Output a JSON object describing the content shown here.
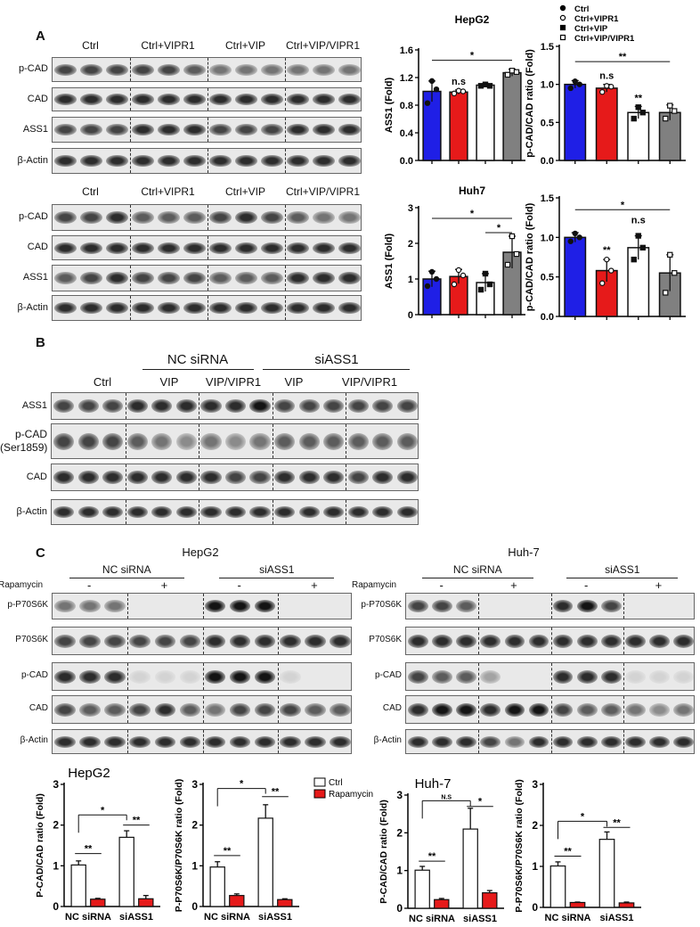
{
  "panel_a": {
    "label": "A",
    "groups": [
      "Ctrl",
      "Ctrl+VIPR1",
      "Ctrl+VIP",
      "Ctrl+VIP/VIPR1"
    ],
    "rows": [
      "p-CAD",
      "CAD",
      "ASS1",
      "β-Actin"
    ],
    "legend": [
      "Ctrl",
      "Ctrl+VIPR1",
      "Ctrl+VIP",
      "Ctrl+VIP/VIPR1"
    ]
  },
  "panel_b": {
    "label": "B",
    "group_labels": [
      "NC siRNA",
      "siASS1"
    ],
    "lanes": [
      "Ctrl",
      "VIP",
      "VIP/VIPR1",
      "VIP",
      "VIP/VIPR1"
    ],
    "rows": [
      "ASS1",
      "p-CAD",
      "(Ser1859)",
      "CAD",
      "β-Actin"
    ]
  },
  "panel_c": {
    "label": "C",
    "blots": [
      {
        "title": "HepG2",
        "groups": [
          "NC siRNA",
          "siASS1"
        ],
        "treatment": "Rapamycin",
        "signs": [
          "-",
          "+",
          "-",
          "+"
        ],
        "rows": [
          "p-P70S6K",
          "P70S6K",
          "p-CAD",
          "CAD",
          "β-Actin"
        ]
      },
      {
        "title": "Huh-7",
        "groups": [
          "NC siRNA",
          "siASS1"
        ],
        "treatment": "Rapamycin",
        "signs": [
          "-",
          "+",
          "-",
          "+"
        ],
        "rows": [
          "p-P70S6K",
          "P70S6K",
          "p-CAD",
          "CAD",
          "β-Actin"
        ]
      }
    ],
    "legend": [
      "Ctrl",
      "Rapamycin"
    ]
  },
  "colors": {
    "ctrl": "#1f1fe6",
    "vipr1": "#e61a1a",
    "vip": "#ffffff",
    "vip_vipr1": "#808080",
    "rapamycin": "#e61a1a"
  },
  "chart_data": [
    {
      "id": "a_hepg2_ass1",
      "type": "bar",
      "title": "HepG2",
      "ylabel": "ASS1 (Fold)",
      "ylim": [
        0,
        1.6
      ],
      "ticks": [
        "0.0",
        "0.4",
        "0.8",
        "1.2",
        "1.6"
      ],
      "tickvals": [
        0,
        0.4,
        0.8,
        1.2,
        1.6
      ],
      "categories": [
        "Ctrl",
        "Ctrl+VIPR1",
        "Ctrl+VIP",
        "Ctrl+VIP/VIPR1"
      ],
      "values": [
        1.0,
        0.99,
        1.09,
        1.27
      ],
      "errors": [
        0.15,
        0.03,
        0.02,
        0.05
      ],
      "points": [
        [
          0.83,
          1.15,
          1.03
        ],
        [
          0.97,
          1.01,
          1.0
        ],
        [
          1.08,
          1.1,
          1.08
        ],
        [
          1.24,
          1.3,
          1.28
        ]
      ],
      "brackets": [
        {
          "text": "*",
          "from": 0,
          "to": 3,
          "y": 1.45
        }
      ],
      "labels": [
        {
          "text": "n.s",
          "at": 1,
          "y": 1.1
        }
      ]
    },
    {
      "id": "a_hepg2_pcad",
      "type": "bar",
      "title": "",
      "ylabel": "p-CAD/CAD ratio (Fold)",
      "ylim": [
        0,
        1.5
      ],
      "ticks": [
        "0.0",
        "0.5",
        "1.0",
        "1.5"
      ],
      "tickvals": [
        0,
        0.5,
        1.0,
        1.5
      ],
      "categories": [
        "Ctrl",
        "Ctrl+VIPR1",
        "Ctrl+VIP",
        "Ctrl+VIP/VIPR1"
      ],
      "values": [
        1.0,
        0.95,
        0.63,
        0.63
      ],
      "errors": [
        0.05,
        0.05,
        0.08,
        0.1
      ],
      "points": [
        [
          0.95,
          1.04,
          1.0
        ],
        [
          0.9,
          0.98,
          0.97
        ],
        [
          0.55,
          0.7,
          0.63
        ],
        [
          0.55,
          0.72,
          0.65
        ]
      ],
      "brackets": [
        {
          "text": "**",
          "from": 0,
          "to": 3,
          "y": 1.3
        }
      ],
      "labels": [
        {
          "text": "n.s",
          "at": 1,
          "y": 1.07
        },
        {
          "text": "**",
          "at": 2,
          "y": 0.78
        }
      ]
    },
    {
      "id": "a_huh7_ass1",
      "type": "bar",
      "title": "Huh7",
      "ylabel": "ASS1 (Fold)",
      "ylim": [
        0,
        3
      ],
      "ticks": [
        "0",
        "1",
        "2",
        "3"
      ],
      "tickvals": [
        0,
        1,
        2,
        3
      ],
      "categories": [
        "Ctrl",
        "Ctrl+VIPR1",
        "Ctrl+VIP",
        "Ctrl+VIP/VIPR1"
      ],
      "values": [
        1.0,
        1.07,
        0.9,
        1.75
      ],
      "errors": [
        0.22,
        0.2,
        0.25,
        0.45
      ],
      "points": [
        [
          0.8,
          1.2,
          1.0
        ],
        [
          0.85,
          1.25,
          1.1
        ],
        [
          0.7,
          1.15,
          0.85
        ],
        [
          1.4,
          2.2,
          1.7
        ]
      ],
      "brackets": [
        {
          "text": "*",
          "from": 0,
          "to": 3,
          "y": 2.7
        },
        {
          "text": "*",
          "from": 2,
          "to": 3,
          "y": 2.3
        }
      ],
      "labels": []
    },
    {
      "id": "a_huh7_pcad",
      "type": "bar",
      "title": "",
      "ylabel": "p-CAD/CAD ratio (Fold)",
      "ylim": [
        0,
        1.5
      ],
      "ticks": [
        "0.0",
        "0.5",
        "1.0",
        "1.5"
      ],
      "tickvals": [
        0,
        0.5,
        1.0,
        1.5
      ],
      "categories": [
        "Ctrl",
        "Ctrl+VIPR1",
        "Ctrl+VIP",
        "Ctrl+VIP/VIPR1"
      ],
      "values": [
        1.0,
        0.58,
        0.87,
        0.55
      ],
      "errors": [
        0.06,
        0.14,
        0.15,
        0.23
      ],
      "points": [
        [
          0.95,
          1.05,
          1.0
        ],
        [
          0.42,
          0.72,
          0.58
        ],
        [
          0.72,
          1.02,
          0.87
        ],
        [
          0.3,
          0.78,
          0.55
        ]
      ],
      "brackets": [
        {
          "text": "*",
          "from": 0,
          "to": 3,
          "y": 1.35
        }
      ],
      "labels": [
        {
          "text": "**",
          "at": 1,
          "y": 0.8
        },
        {
          "text": "n.s",
          "at": 2,
          "y": 1.18
        }
      ]
    },
    {
      "id": "c_hepg2_pcad",
      "type": "grouped_bar",
      "title": "HepG2",
      "ylabel": "P-CAD/CAD ratio (Fold)",
      "ylim": [
        0,
        3
      ],
      "ticks": [
        "0",
        "1",
        "2",
        "3"
      ],
      "tickvals": [
        0,
        1,
        2,
        3
      ],
      "categories": [
        "NC siRNA",
        "siASS1"
      ],
      "series": [
        {
          "name": "Ctrl",
          "values": [
            1.02,
            1.7
          ],
          "errors": [
            0.1,
            0.16
          ]
        },
        {
          "name": "Rapamycin",
          "values": [
            0.18,
            0.19
          ],
          "errors": [
            0.02,
            0.08
          ]
        }
      ],
      "brackets": [
        {
          "text": "*",
          "from": 0,
          "to": 2,
          "y": 2.25
        },
        {
          "text": "**",
          "from": 0,
          "to": 1,
          "y": 1.3,
          "flat": true
        },
        {
          "text": "**",
          "from": 2,
          "to": 3,
          "y": 2.0,
          "flat": true
        }
      ]
    },
    {
      "id": "c_hepg2_p70",
      "type": "grouped_bar",
      "title": "",
      "ylabel": "P-P70S6K/P70S6K ratio (Fold)",
      "ylim": [
        0,
        3
      ],
      "ticks": [
        "0",
        "1",
        "2",
        "3"
      ],
      "tickvals": [
        0,
        1,
        2,
        3
      ],
      "categories": [
        "NC siRNA",
        "siASS1"
      ],
      "series": [
        {
          "name": "Ctrl",
          "values": [
            0.97,
            2.17
          ],
          "errors": [
            0.13,
            0.33
          ]
        },
        {
          "name": "Rapamycin",
          "values": [
            0.27,
            0.17
          ],
          "errors": [
            0.04,
            0.02
          ]
        }
      ],
      "brackets": [
        {
          "text": "*",
          "from": 0,
          "to": 2,
          "y": 2.9
        },
        {
          "text": "**",
          "from": 0,
          "to": 1,
          "y": 1.25,
          "flat": true
        },
        {
          "text": "**",
          "from": 2,
          "to": 3,
          "y": 2.7,
          "flat": true
        }
      ]
    },
    {
      "id": "c_huh7_pcad",
      "type": "grouped_bar",
      "title": "Huh-7",
      "ylabel": "P-CAD/CAD ratio (Fold)",
      "ylim": [
        0,
        3
      ],
      "ticks": [
        "0",
        "1",
        "2",
        "3"
      ],
      "tickvals": [
        0,
        1,
        2,
        3
      ],
      "categories": [
        "NC siRNA",
        "siASS1"
      ],
      "series": [
        {
          "name": "Ctrl",
          "values": [
            1.01,
            2.1
          ],
          "errors": [
            0.1,
            0.55
          ]
        },
        {
          "name": "Rapamycin",
          "values": [
            0.23,
            0.41
          ],
          "errors": [
            0.03,
            0.06
          ]
        }
      ],
      "brackets": [
        {
          "text": "N.S",
          "from": 0,
          "to": 2,
          "y": 2.85
        },
        {
          "text": "**",
          "from": 0,
          "to": 1,
          "y": 1.25,
          "flat": true
        },
        {
          "text": "*",
          "from": 2,
          "to": 3,
          "y": 2.7,
          "flat": true
        }
      ]
    },
    {
      "id": "c_huh7_p70",
      "type": "grouped_bar",
      "title": "",
      "ylabel": "P-P70S6K/P70S6K ratio (Fold)",
      "ylim": [
        0,
        3
      ],
      "ticks": [
        "0",
        "1",
        "2",
        "3"
      ],
      "tickvals": [
        0,
        1,
        2,
        3
      ],
      "categories": [
        "NC siRNA",
        "siASS1"
      ],
      "series": [
        {
          "name": "Ctrl",
          "values": [
            1.01,
            1.66
          ],
          "errors": [
            0.1,
            0.18
          ]
        },
        {
          "name": "Rapamycin",
          "values": [
            0.12,
            0.11
          ],
          "errors": [
            0.01,
            0.02
          ]
        }
      ],
      "brackets": [
        {
          "text": "*",
          "from": 0,
          "to": 2,
          "y": 2.1
        },
        {
          "text": "**",
          "from": 0,
          "to": 1,
          "y": 1.25,
          "flat": true
        },
        {
          "text": "**",
          "from": 2,
          "to": 3,
          "y": 1.95,
          "flat": true
        }
      ]
    }
  ]
}
